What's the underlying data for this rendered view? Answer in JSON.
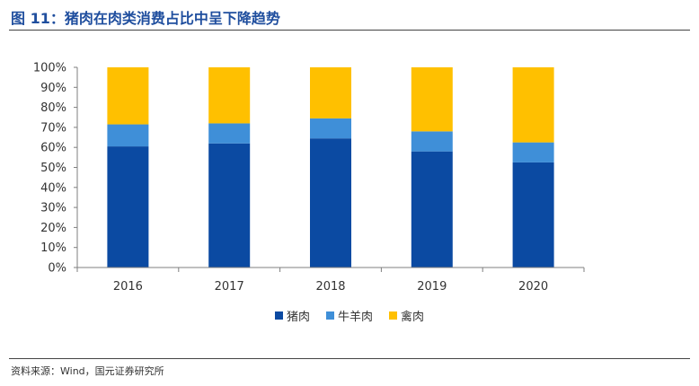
{
  "page": {
    "title": "图 11：猪肉在肉类消费占比中呈下降趋势",
    "source": "资料来源：Wind，国元证券研究所"
  },
  "colors": {
    "title": "#1f4e9e",
    "pork": "#0b4aa2",
    "beef_mutton": "#3f8fd8",
    "poultry": "#ffc000"
  },
  "chart_data": {
    "type": "bar",
    "stacked": true,
    "title": "",
    "xlabel": "",
    "ylabel": "",
    "ylim": [
      0,
      100
    ],
    "y_ticks": [
      "0%",
      "10%",
      "20%",
      "30%",
      "40%",
      "50%",
      "60%",
      "70%",
      "80%",
      "90%",
      "100%"
    ],
    "categories": [
      "2016",
      "2017",
      "2018",
      "2019",
      "2020"
    ],
    "legend_position": "bottom",
    "grid": false,
    "series": [
      {
        "name": "猪肉",
        "values": [
          60.5,
          62,
          64.5,
          58,
          52.5
        ],
        "color": "#0b4aa2"
      },
      {
        "name": "牛羊肉",
        "values": [
          11,
          10,
          10,
          10,
          10
        ],
        "color": "#3f8fd8"
      },
      {
        "name": "禽肉",
        "values": [
          28.5,
          28,
          25.5,
          32,
          37.5
        ],
        "color": "#ffc000"
      }
    ]
  }
}
